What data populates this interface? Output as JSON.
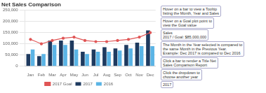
{
  "chart_data": {
    "type": "bar",
    "title": "Net Sales Comparison",
    "categories": [
      "Jan",
      "Feb",
      "Mar",
      "Apr",
      "May",
      "Jun",
      "Jul",
      "Aug",
      "Sep",
      "Oct",
      "Nov",
      "Dec"
    ],
    "series": [
      {
        "name": "2017",
        "color": "#1e3a5f",
        "values": [
          55000,
          45000,
          115000,
          115000,
          115000,
          65000,
          75000,
          85000,
          80000,
          95000,
          105000,
          160000
        ]
      },
      {
        "name": "2016",
        "color": "#5ab4e5",
        "values": [
          75000,
          55000,
          95000,
          95000,
          75000,
          55000,
          65000,
          65000,
          70000,
          80000,
          90000,
          90000
        ]
      },
      {
        "name": "2017 Goal",
        "type": "line",
        "marker": "o",
        "color": "#e05555",
        "values": [
          120000,
          100000,
          115000,
          125000,
          130000,
          115000,
          110000,
          110000,
          115000,
          120000,
          130000,
          150000
        ]
      }
    ],
    "ylim": [
      0,
      250000
    ],
    "yticks": [
      0,
      {
        "value": 50000,
        "label": "50,000"
      },
      {
        "value": 100000,
        "label": "100,000"
      },
      {
        "value": 150000,
        "label": "150,000"
      },
      {
        "value": 200000,
        "label": "200,000"
      },
      {
        "value": 250000,
        "label": "250,000"
      }
    ],
    "grid": true,
    "legend": "bottom",
    "annotations": [
      "Hover on a bar to view a Tooltip\nlisting the Month, Year and Sales",
      "Hover on a Goal plot point to\nview the Goal value",
      "Sales\n2017 / Goal: $85,000,000",
      "The Month in the Year selected is compared to\nthe same Month in the Previous Year.\nExample: Dec 2017 is compared to Dec 2016",
      "Click a bar to render a Title Net\nSales Comparison Report",
      "Click the dropdown to\nchoose another year",
      "2017"
    ]
  }
}
